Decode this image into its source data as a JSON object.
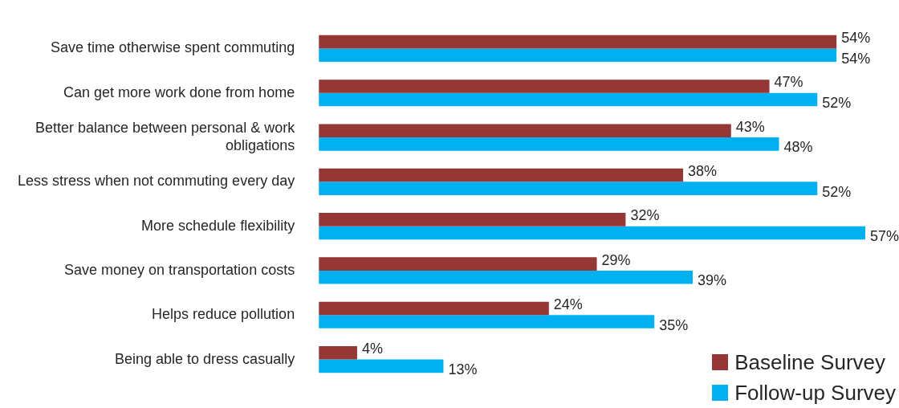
{
  "chart_data": {
    "type": "bar",
    "orientation": "horizontal",
    "categories": [
      "Save time otherwise spent commuting",
      "Can get more work done from home",
      "Better balance between personal & work obligations",
      "Less stress when not commuting every day",
      "More schedule flexibility",
      "Save money on transportation costs",
      "Helps reduce pollution",
      "Being able to dress casually"
    ],
    "series": [
      {
        "name": "Baseline Survey",
        "color": "#953735",
        "values": [
          54,
          47,
          43,
          38,
          32,
          29,
          24,
          4
        ],
        "value_labels": [
          "54%",
          "47%",
          "43%",
          "38%",
          "32%",
          "29%",
          "24%",
          "4%"
        ]
      },
      {
        "name": "Follow-up Survey",
        "color": "#00b0f0",
        "values": [
          54,
          52,
          48,
          52,
          57,
          39,
          35,
          13
        ],
        "value_labels": [
          "54%",
          "52%",
          "48%",
          "52%",
          "57%",
          "39%",
          "35%",
          "13%"
        ]
      }
    ],
    "legend": "bottom right"
  }
}
